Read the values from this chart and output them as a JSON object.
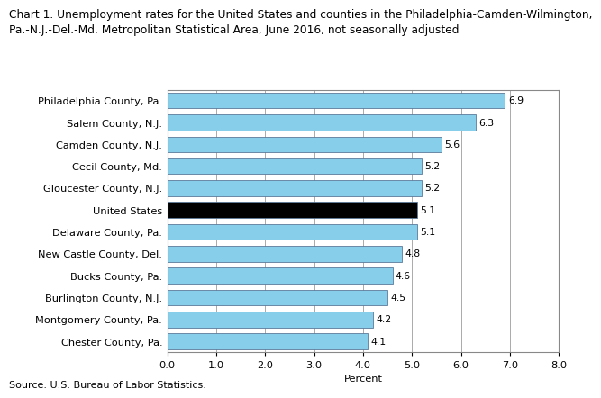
{
  "title_line1": "Chart 1. Unemployment rates for the United States and counties in the Philadelphia-Camden-Wilmington,",
  "title_line2": "Pa.-N.J.-Del.-Md. Metropolitan Statistical Area, June 2016, not seasonally adjusted",
  "categories": [
    "Philadelphia County, Pa.",
    "Salem County, N.J.",
    "Camden County, N.J.",
    "Cecil County, Md.",
    "Gloucester County, N.J.",
    "United States",
    "Delaware County, Pa.",
    "New Castle County, Del.",
    "Bucks County, Pa.",
    "Burlington County, N.J.",
    "Montgomery County, Pa.",
    "Chester County, Pa."
  ],
  "values": [
    6.9,
    6.3,
    5.6,
    5.2,
    5.2,
    5.1,
    5.1,
    4.8,
    4.6,
    4.5,
    4.2,
    4.1
  ],
  "bar_colors": [
    "#87CEEB",
    "#87CEEB",
    "#87CEEB",
    "#87CEEB",
    "#87CEEB",
    "#000000",
    "#87CEEB",
    "#87CEEB",
    "#87CEEB",
    "#87CEEB",
    "#87CEEB",
    "#87CEEB"
  ],
  "bar_edge_color": "#5a7a9a",
  "xlim": [
    0.0,
    8.0
  ],
  "xticks": [
    0.0,
    1.0,
    2.0,
    3.0,
    4.0,
    5.0,
    6.0,
    7.0,
    8.0
  ],
  "xtick_labels": [
    "0.0",
    "1.0",
    "2.0",
    "3.0",
    "4.0",
    "5.0",
    "6.0",
    "7.0",
    "8.0"
  ],
  "xlabel": "Percent",
  "source": "Source: U.S. Bureau of Labor Statistics.",
  "title_fontsize": 8.8,
  "label_fontsize": 8.2,
  "tick_fontsize": 8.2,
  "value_fontsize": 7.8,
  "source_fontsize": 8.0,
  "background_color": "#ffffff",
  "grid_color": "#aaaaaa"
}
